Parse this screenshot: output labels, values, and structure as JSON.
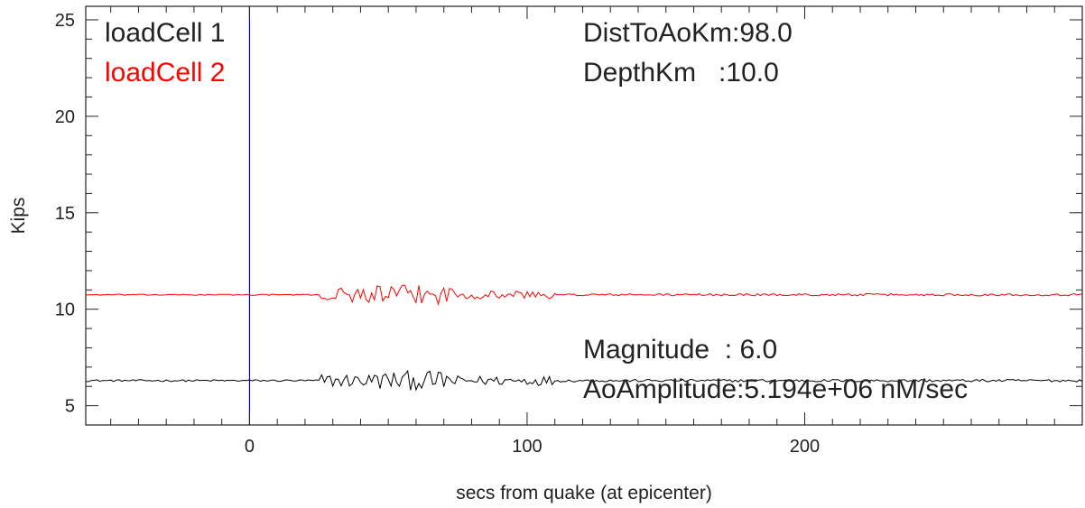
{
  "chart_data": {
    "type": "line",
    "title": "",
    "xlabel": "secs from quake (at epicenter)",
    "ylabel": "Kips",
    "xlim": [
      -59,
      300
    ],
    "ylim": [
      4.0,
      25.7
    ],
    "x_ticks": [
      0,
      100,
      200
    ],
    "y_ticks": [
      5,
      10,
      15,
      20,
      25
    ],
    "x_tick_labels": [
      "0",
      "100",
      "200"
    ],
    "y_tick_labels": [
      "5",
      "10",
      "15",
      "20",
      "25"
    ],
    "grid": false,
    "legend_position": "top-left",
    "reference_line": {
      "x": 0,
      "color": "#0000cc"
    },
    "series": [
      {
        "name": "loadCell 1",
        "color": "#000000",
        "baseline": 6.3,
        "noise": [
          {
            "start": -59,
            "end": 26,
            "amp": 0.05
          },
          {
            "start": 26,
            "end": 45,
            "amp": 0.35
          },
          {
            "start": 45,
            "end": 75,
            "amp": 0.5
          },
          {
            "start": 75,
            "end": 110,
            "amp": 0.25
          },
          {
            "start": 110,
            "end": 300,
            "amp": 0.07
          }
        ]
      },
      {
        "name": "loadCell 2",
        "color": "#ff0000",
        "baseline": 10.75,
        "noise": [
          {
            "start": -59,
            "end": 26,
            "amp": 0.03
          },
          {
            "start": 26,
            "end": 45,
            "amp": 0.4
          },
          {
            "start": 45,
            "end": 75,
            "amp": 0.5
          },
          {
            "start": 75,
            "end": 110,
            "amp": 0.22
          },
          {
            "start": 110,
            "end": 300,
            "amp": 0.06
          }
        ]
      }
    ],
    "annotations": {
      "dist": "DistToAoKm:98.0",
      "depth": "DepthKm   :10.0",
      "magnitude": "Magnitude  : 6.0",
      "amplitude": "AoAmplitude:5.194e+06 nM/sec"
    }
  }
}
